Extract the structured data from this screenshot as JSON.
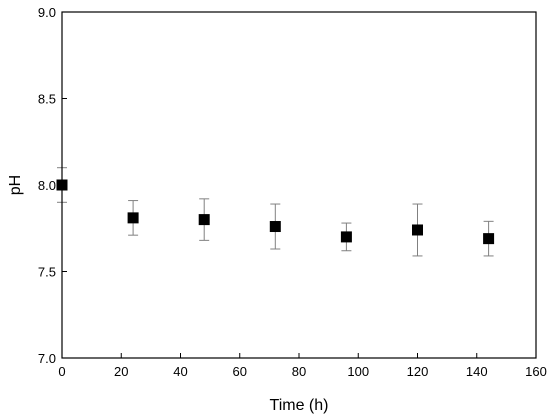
{
  "chart_data": {
    "type": "scatter",
    "xlabel": "Time (h)",
    "ylabel": "pH",
    "xlim": [
      0,
      160
    ],
    "ylim": [
      7.0,
      9.0
    ],
    "xticks": [
      0,
      20,
      40,
      60,
      80,
      100,
      120,
      140,
      160
    ],
    "xtick_labels": [
      "0",
      "20",
      "40",
      "60",
      "80",
      "100",
      "120",
      "140",
      "160"
    ],
    "yticks": [
      7.0,
      7.5,
      8.0,
      8.5,
      9.0
    ],
    "ytick_labels": [
      "7.0",
      "7.5",
      "8.0",
      "8.5",
      "9.0"
    ],
    "grid": false,
    "marker": "square",
    "marker_color": "#000000",
    "errorbar_color": "#808080",
    "series": [
      {
        "x": [
          0,
          24,
          48,
          72,
          96,
          120,
          144
        ],
        "y": [
          8.0,
          7.81,
          7.8,
          7.76,
          7.7,
          7.74,
          7.69
        ],
        "error": [
          0.1,
          0.1,
          0.12,
          0.13,
          0.08,
          0.15,
          0.1
        ]
      }
    ]
  }
}
